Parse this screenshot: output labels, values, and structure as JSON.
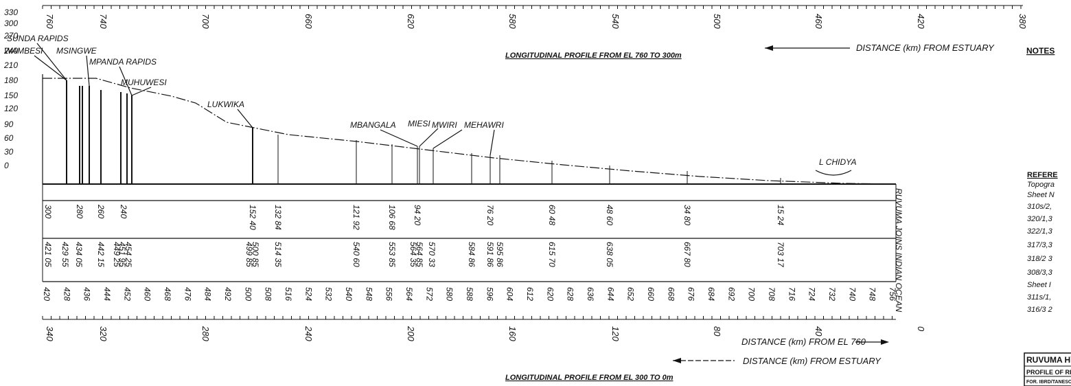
{
  "titles": {
    "upper_profile": "LONGITUDINAL PROFILE FROM EL 760 TO 300m",
    "lower_profile": "LONGITUDINAL PROFILE FROM EL 300 TO 0m",
    "upper_distance": "DISTANCE (km) FROM ESTUARY",
    "middle_distance": "DISTANCE (km) FROM EL 760",
    "lower_distance": "DISTANCE (km) FROM ESTUARY",
    "mouth": "RUVUMA JOINS INDIAN OCEAN"
  },
  "top_scale": [
    "760",
    "740",
    "700",
    "660",
    "620",
    "580",
    "540",
    "500",
    "460",
    "420",
    "380"
  ],
  "elevation_axis": [
    "330",
    "300",
    "270",
    "240",
    "210",
    "180",
    "150",
    "120",
    "90",
    "60",
    "30",
    "0"
  ],
  "features": [
    {
      "name": "SUNDA RAPIDS"
    },
    {
      "name": "WAMBESI"
    },
    {
      "name": "MSINGWE"
    },
    {
      "name": "MPANDA RAPIDS"
    },
    {
      "name": "MUHUWESI"
    },
    {
      "name": "LUKWIKA"
    },
    {
      "name": "MBANGALA"
    },
    {
      "name": "MIESI"
    },
    {
      "name": "MWIRI"
    },
    {
      "name": "MEHAWRI"
    },
    {
      "name": "L CHIDYA"
    }
  ],
  "elevation_labels": [
    "300",
    "280",
    "260",
    "240",
    "152 40",
    "132 84",
    "121 92",
    "106 68",
    "94 20",
    "76 20",
    "60 48",
    "48 60",
    "34 80",
    "15 24"
  ],
  "chainage_labels": [
    "421 05",
    "429 55",
    "434 05",
    "442 15",
    "449 25",
    "451 95",
    "454 25",
    "499 85",
    "500 85",
    "514 35",
    "540 60",
    "553 85",
    "564 35",
    "564 85",
    "570 33",
    "584 86",
    "591 86",
    "595 86",
    "615 70",
    "638 05",
    "667 80",
    "703 17"
  ],
  "km_scale": [
    "420",
    "428",
    "436",
    "444",
    "452",
    "460",
    "468",
    "476",
    "484",
    "492",
    "500",
    "508",
    "516",
    "524",
    "532",
    "540",
    "548",
    "556",
    "564",
    "572",
    "580",
    "588",
    "596",
    "604",
    "612",
    "620",
    "628",
    "636",
    "644",
    "652",
    "660",
    "668",
    "676",
    "684",
    "692",
    "700",
    "708",
    "716",
    "724",
    "732",
    "740",
    "748",
    "756"
  ],
  "bottom_scale": [
    "340",
    "320",
    "280",
    "240",
    "200",
    "160",
    "120",
    "80",
    "40",
    "0"
  ],
  "side_panel": {
    "notes_heading": "NOTES",
    "references_heading": "REFERE",
    "reference_lines": [
      "Topogra",
      "Sheet N",
      "310s/2,",
      "320/1,3",
      "322/1,3",
      "317/3,3",
      "318/2 3",
      "308/3,3",
      "Sheet I",
      "311s/1,",
      "316/3 2"
    ],
    "title_block": [
      "RUVUMA HYD",
      "PROFILE OF RIVI",
      "FOR. IBRD/TANESCO"
    ]
  }
}
